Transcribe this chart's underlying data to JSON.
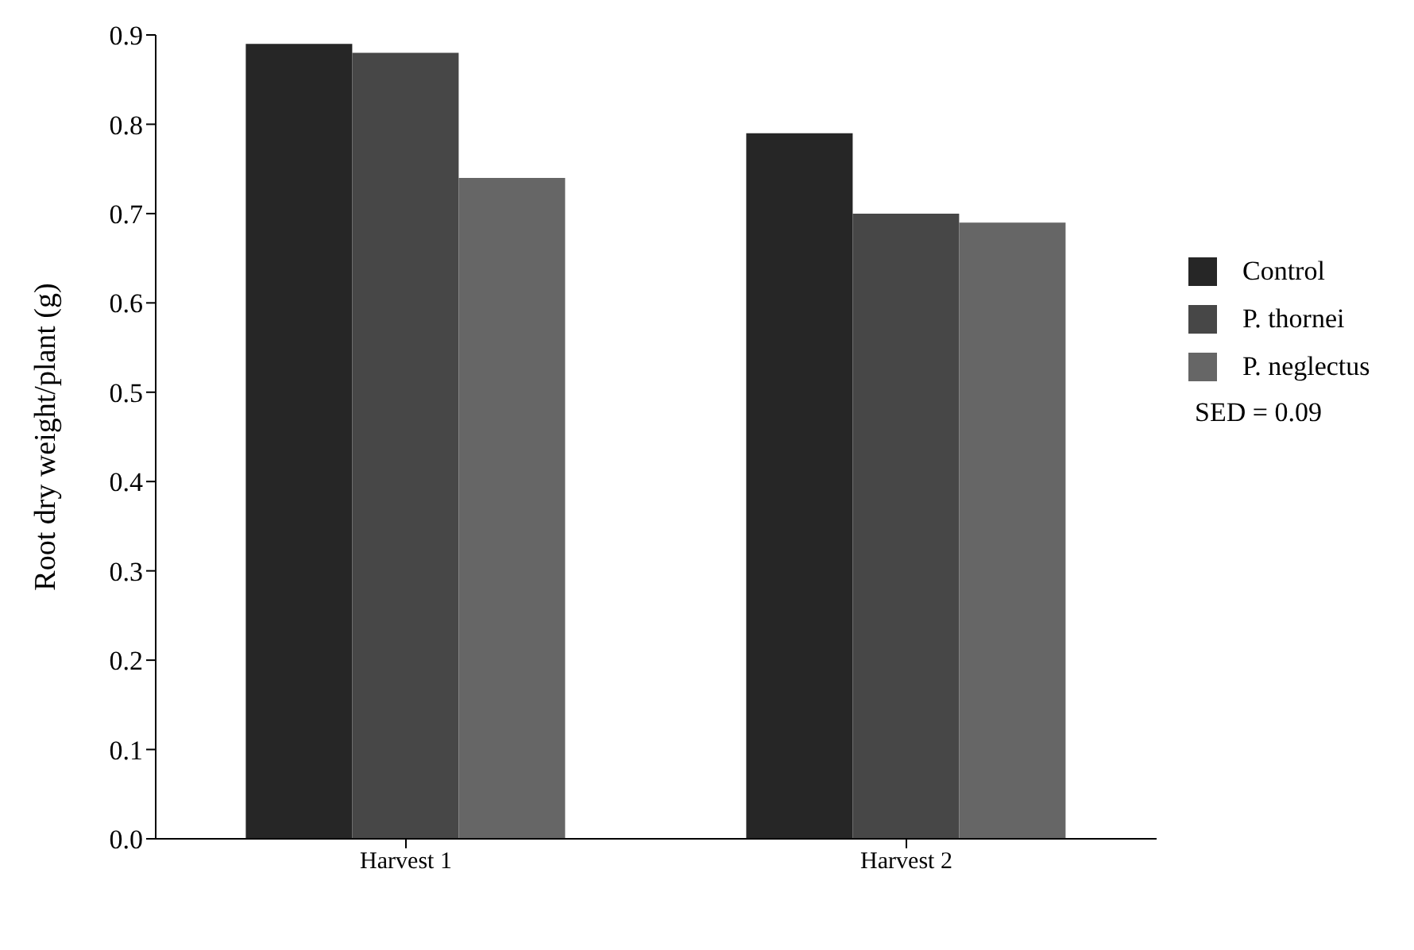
{
  "chart_data": {
    "type": "bar",
    "ylabel": "Root dry weight/plant (g)",
    "categories": [
      "Harvest 1",
      "Harvest 2"
    ],
    "series": [
      {
        "name": "Control",
        "color": "#262626",
        "values": [
          0.89,
          0.79
        ]
      },
      {
        "name": "P. thornei",
        "color": "#474747",
        "values": [
          0.88,
          0.7
        ]
      },
      {
        "name": "P. neglectus",
        "color": "#666666",
        "values": [
          0.74,
          0.69
        ]
      }
    ],
    "ylim": [
      0,
      0.9
    ],
    "yticks": [
      {
        "value": 0,
        "label": "0.0"
      },
      0.1,
      0.2,
      0.3,
      0.4,
      0.5,
      0.6,
      0.7,
      0.8,
      0.9
    ],
    "grid": false,
    "legend": "right",
    "annotations": [
      "SED = 0.09"
    ]
  }
}
